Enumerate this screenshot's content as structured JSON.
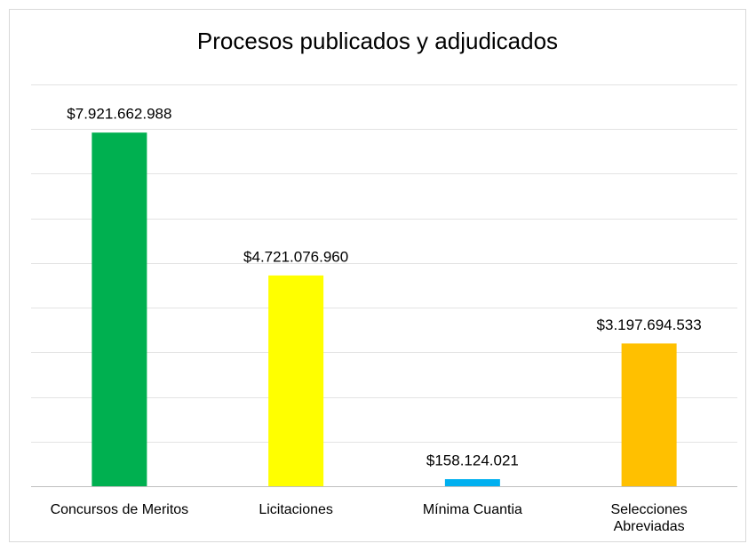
{
  "chart_data": {
    "type": "bar",
    "title": "Procesos publicados y adjudicados",
    "categories": [
      "Concursos de Meritos",
      "Licitaciones",
      "Mínima Cuantia",
      "Selecciones Abreviadas"
    ],
    "values": [
      7921662988,
      4721076960,
      158124021,
      3197694533
    ],
    "value_labels": [
      "$7.921.662.988",
      "$4.721.076.960",
      "$158.124.021",
      "$3.197.694.533"
    ],
    "colors": [
      "#00b050",
      "#ffff00",
      "#00b0f0",
      "#ffc000"
    ],
    "ylim": [
      0,
      9000000000
    ],
    "yticks": [
      0,
      1000000000,
      2000000000,
      3000000000,
      4000000000,
      5000000000,
      6000000000,
      7000000000,
      8000000000,
      9000000000
    ],
    "grid": true
  }
}
